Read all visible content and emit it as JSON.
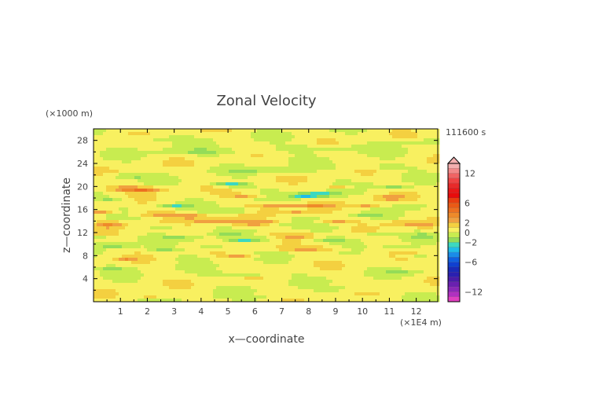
{
  "chart_data": {
    "type": "heatmap",
    "title": "Zonal Velocity",
    "xlabel": "x—coordinate",
    "ylabel": "z—coordinate",
    "x_unit": "(×1E4 m)",
    "y_unit": "(×1000 m)",
    "time_label": "111600 s",
    "xlim": [
      0,
      12.8
    ],
    "ylim": [
      0,
      30
    ],
    "x_ticks": [
      "1",
      "2",
      "3",
      "4",
      "5",
      "6",
      "7",
      "8",
      "9",
      "10",
      "11",
      "12"
    ],
    "y_ticks": [
      "4",
      "8",
      "12",
      "16",
      "20",
      "24",
      "28"
    ],
    "colorbar": {
      "range": [
        -14,
        14
      ],
      "tick_labels": [
        "12",
        "6",
        "2",
        "0",
        "−2",
        "−6",
        "−12"
      ],
      "tick_values": [
        12,
        6,
        2,
        0,
        -2,
        -6,
        -12
      ],
      "levels": [
        {
          "lo": 13,
          "hi": 14,
          "color": "#f4b0b0"
        },
        {
          "lo": 12,
          "hi": 13,
          "color": "#f28a8a"
        },
        {
          "lo": 11,
          "hi": 12,
          "color": "#f06464"
        },
        {
          "lo": 10,
          "hi": 11,
          "color": "#ee4444"
        },
        {
          "lo": 9,
          "hi": 10,
          "color": "#e82a2a"
        },
        {
          "lo": 8,
          "hi": 9,
          "color": "#e81818"
        },
        {
          "lo": 7,
          "hi": 8,
          "color": "#e80c0c"
        },
        {
          "lo": 6,
          "hi": 7,
          "color": "#e83e10"
        },
        {
          "lo": 5,
          "hi": 6,
          "color": "#ea5a16"
        },
        {
          "lo": 4,
          "hi": 5,
          "color": "#ec7020"
        },
        {
          "lo": 3,
          "hi": 4,
          "color": "#ee8a2a"
        },
        {
          "lo": 2,
          "hi": 3,
          "color": "#f0a040"
        },
        {
          "lo": 1,
          "hi": 2,
          "color": "#f4d040"
        },
        {
          "lo": 0,
          "hi": 1,
          "color": "#f8f060"
        },
        {
          "lo": -1,
          "hi": 0,
          "color": "#c8ec50"
        },
        {
          "lo": -2,
          "hi": -1,
          "color": "#94dc58"
        },
        {
          "lo": -3,
          "hi": -2,
          "color": "#3cd8c0"
        },
        {
          "lo": -4,
          "hi": -3,
          "color": "#20bce8"
        },
        {
          "lo": -5,
          "hi": -4,
          "color": "#1a8ce8"
        },
        {
          "lo": -6,
          "hi": -5,
          "color": "#1060e0"
        },
        {
          "lo": -7,
          "hi": -6,
          "color": "#1040d0"
        },
        {
          "lo": -8,
          "hi": -7,
          "color": "#1a2ab8"
        },
        {
          "lo": -9,
          "hi": -8,
          "color": "#2a20b0"
        },
        {
          "lo": -10,
          "hi": -9,
          "color": "#4a1ca8"
        },
        {
          "lo": -11,
          "hi": -10,
          "color": "#6a20b0"
        },
        {
          "lo": -12,
          "hi": -11,
          "color": "#8a28b8"
        },
        {
          "lo": -13,
          "hi": -12,
          "color": "#b030c0"
        },
        {
          "lo": -14,
          "hi": -13,
          "color": "#e040c0"
        }
      ]
    },
    "field_background": 0.4,
    "features": [
      {
        "x": 1.2,
        "z": 19.6,
        "sx": 0.9,
        "sz": 0.45,
        "v": 2.6
      },
      {
        "x": 2.0,
        "z": 19.4,
        "sx": 0.7,
        "sz": 0.4,
        "v": 2.4
      },
      {
        "x": 1.3,
        "z": 21.8,
        "sx": 0.8,
        "sz": 0.35,
        "v": -2.2
      },
      {
        "x": 0.6,
        "z": 17.8,
        "sx": 0.6,
        "sz": 0.4,
        "v": -1.6
      },
      {
        "x": 0.3,
        "z": 15.6,
        "sx": 0.5,
        "sz": 0.4,
        "v": 2.3
      },
      {
        "x": 0.6,
        "z": 13.4,
        "sx": 0.6,
        "sz": 0.6,
        "v": 2.7
      },
      {
        "x": 0.2,
        "z": 11.2,
        "sx": 0.5,
        "sz": 0.35,
        "v": -1.5
      },
      {
        "x": 0.8,
        "z": 9.8,
        "sx": 0.7,
        "sz": 0.4,
        "v": -2.3
      },
      {
        "x": 1.2,
        "z": 7.4,
        "sx": 0.4,
        "sz": 0.3,
        "v": 2.1
      },
      {
        "x": 0.6,
        "z": 5.8,
        "sx": 0.8,
        "sz": 0.4,
        "v": -1.3
      },
      {
        "x": 3.0,
        "z": 16.6,
        "sx": 0.6,
        "sz": 0.3,
        "v": -2.2
      },
      {
        "x": 2.4,
        "z": 15.2,
        "sx": 0.9,
        "sz": 0.4,
        "v": 2.3
      },
      {
        "x": 3.6,
        "z": 14.8,
        "sx": 0.6,
        "sz": 0.4,
        "v": 2.2
      },
      {
        "x": 2.8,
        "z": 13.0,
        "sx": 0.8,
        "sz": 0.35,
        "v": -1.4
      },
      {
        "x": 3.2,
        "z": 11.0,
        "sx": 0.8,
        "sz": 0.4,
        "v": -1.5
      },
      {
        "x": 2.6,
        "z": 9.0,
        "sx": 0.6,
        "sz": 0.3,
        "v": -1.8
      },
      {
        "x": 4.4,
        "z": 9.4,
        "sx": 0.6,
        "sz": 0.4,
        "v": -2.0
      },
      {
        "x": 3.6,
        "z": 7.6,
        "sx": 0.6,
        "sz": 0.35,
        "v": -1.2
      },
      {
        "x": 4.8,
        "z": 20.4,
        "sx": 0.6,
        "sz": 0.35,
        "v": -2.3
      },
      {
        "x": 5.4,
        "z": 20.2,
        "sx": 0.5,
        "sz": 0.3,
        "v": -3.5
      },
      {
        "x": 5.6,
        "z": 18.4,
        "sx": 0.7,
        "sz": 0.35,
        "v": 2.2
      },
      {
        "x": 5.2,
        "z": 15.8,
        "sx": 0.7,
        "sz": 0.35,
        "v": -3.0
      },
      {
        "x": 4.8,
        "z": 14.0,
        "sx": 1.2,
        "sz": 0.4,
        "v": 2.3
      },
      {
        "x": 5.8,
        "z": 13.2,
        "sx": 0.8,
        "sz": 0.35,
        "v": 2.1
      },
      {
        "x": 5.0,
        "z": 11.6,
        "sx": 0.6,
        "sz": 0.3,
        "v": -1.6
      },
      {
        "x": 5.6,
        "z": 10.6,
        "sx": 0.7,
        "sz": 0.35,
        "v": -2.4
      },
      {
        "x": 5.4,
        "z": 7.8,
        "sx": 0.6,
        "sz": 0.3,
        "v": 2.3
      },
      {
        "x": 5.6,
        "z": 4.8,
        "sx": 1.2,
        "sz": 0.35,
        "v": -2.0
      },
      {
        "x": 6.6,
        "z": 11.0,
        "sx": 0.6,
        "sz": 0.3,
        "v": -1.4
      },
      {
        "x": 6.8,
        "z": 16.6,
        "sx": 0.8,
        "sz": 0.4,
        "v": 2.3
      },
      {
        "x": 7.6,
        "z": 15.4,
        "sx": 0.9,
        "sz": 0.35,
        "v": 2.1
      },
      {
        "x": 6.4,
        "z": 13.8,
        "sx": 0.5,
        "sz": 0.3,
        "v": 2.0
      },
      {
        "x": 7.2,
        "z": 13.2,
        "sx": 0.6,
        "sz": 0.3,
        "v": -1.3
      },
      {
        "x": 7.4,
        "z": 11.4,
        "sx": 0.8,
        "sz": 0.35,
        "v": 2.3
      },
      {
        "x": 8.0,
        "z": 9.2,
        "sx": 1.3,
        "sz": 0.4,
        "v": 2.4
      },
      {
        "x": 8.4,
        "z": 18.6,
        "sx": 0.8,
        "sz": 0.4,
        "v": -3.8
      },
      {
        "x": 7.8,
        "z": 18.2,
        "sx": 0.5,
        "sz": 0.35,
        "v": -2.6
      },
      {
        "x": 8.2,
        "z": 16.6,
        "sx": 0.8,
        "sz": 0.35,
        "v": 2.2
      },
      {
        "x": 9.0,
        "z": 14.0,
        "sx": 0.7,
        "sz": 0.35,
        "v": 2.2
      },
      {
        "x": 8.6,
        "z": 12.6,
        "sx": 0.6,
        "sz": 0.3,
        "v": -1.6
      },
      {
        "x": 8.8,
        "z": 10.8,
        "sx": 0.8,
        "sz": 0.35,
        "v": -1.8
      },
      {
        "x": 9.2,
        "z": 20.0,
        "sx": 0.6,
        "sz": 0.3,
        "v": 2.2
      },
      {
        "x": 9.8,
        "z": 20.2,
        "sx": 0.5,
        "sz": 0.3,
        "v": -1.5
      },
      {
        "x": 10.2,
        "z": 16.6,
        "sx": 0.6,
        "sz": 0.3,
        "v": 2.1
      },
      {
        "x": 10.2,
        "z": 15.0,
        "sx": 0.6,
        "sz": 0.35,
        "v": -1.6
      },
      {
        "x": 10.6,
        "z": 11.8,
        "sx": 0.6,
        "sz": 0.3,
        "v": -2.0
      },
      {
        "x": 11.2,
        "z": 19.8,
        "sx": 0.6,
        "sz": 0.3,
        "v": -2.4
      },
      {
        "x": 11.0,
        "z": 18.0,
        "sx": 0.7,
        "sz": 0.35,
        "v": 2.3
      },
      {
        "x": 11.8,
        "z": 16.4,
        "sx": 0.6,
        "sz": 0.3,
        "v": -1.6
      },
      {
        "x": 11.4,
        "z": 13.6,
        "sx": 0.6,
        "sz": 0.35,
        "v": 2.1
      },
      {
        "x": 12.2,
        "z": 13.2,
        "sx": 0.5,
        "sz": 0.35,
        "v": 2.3
      },
      {
        "x": 12.2,
        "z": 11.4,
        "sx": 0.5,
        "sz": 0.35,
        "v": -1.8
      },
      {
        "x": 11.4,
        "z": 9.4,
        "sx": 0.6,
        "sz": 0.35,
        "v": -1.6
      },
      {
        "x": 12.0,
        "z": 7.8,
        "sx": 0.6,
        "sz": 0.3,
        "v": -1.3
      },
      {
        "x": 11.6,
        "z": 5.0,
        "sx": 0.8,
        "sz": 0.35,
        "v": -1.4
      },
      {
        "x": 2.2,
        "z": 1.0,
        "sx": 0.6,
        "sz": 0.3,
        "v": 2.1
      },
      {
        "x": 6.0,
        "z": 0.6,
        "sx": 1.4,
        "sz": 0.3,
        "v": -1.2
      },
      {
        "x": 9.4,
        "z": 2.2,
        "sx": 1.0,
        "sz": 0.35,
        "v": -1.3
      },
      {
        "x": 4.2,
        "z": 26.0,
        "sx": 2.0,
        "sz": 0.6,
        "v": -1.3
      },
      {
        "x": 8.6,
        "z": 26.6,
        "sx": 1.8,
        "sz": 0.6,
        "v": -1.4
      },
      {
        "x": 2.6,
        "z": 28.2,
        "sx": 1.2,
        "sz": 0.5,
        "v": -1.2
      },
      {
        "x": 11.6,
        "z": 27.8,
        "sx": 1.2,
        "sz": 0.5,
        "v": -1.3
      },
      {
        "x": 6.4,
        "z": 22.8,
        "sx": 1.6,
        "sz": 0.5,
        "v": -1.2
      },
      {
        "x": 10.4,
        "z": 23.4,
        "sx": 1.4,
        "sz": 0.5,
        "v": -1.3
      }
    ]
  }
}
